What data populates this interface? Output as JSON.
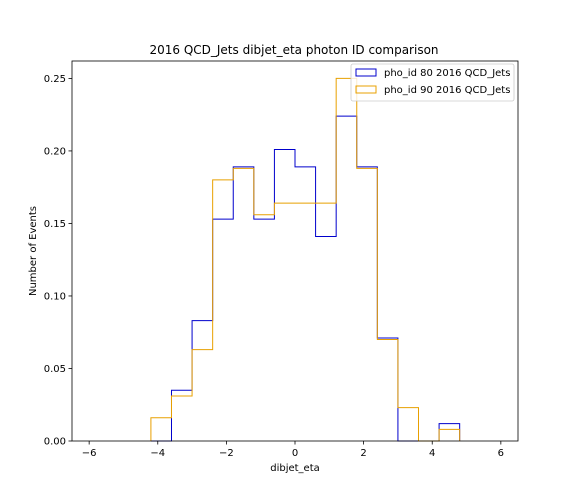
{
  "chart_data": {
    "type": "histogram",
    "title": "2016 QCD_Jets dibjet_eta photon ID comparison",
    "xlabel": "dibjet_eta",
    "ylabel": "Number of Events",
    "xlim": [
      -6.5,
      6.5
    ],
    "ylim": [
      0,
      0.262
    ],
    "x_ticks": [
      -6,
      -4,
      -2,
      0,
      2,
      4,
      6
    ],
    "x_tick_labels": [
      "−6",
      "−4",
      "−2",
      "0",
      "2",
      "4",
      "6"
    ],
    "y_ticks": [
      0.0,
      0.05,
      0.1,
      0.15,
      0.2,
      0.25
    ],
    "y_tick_labels": [
      "0.00",
      "0.05",
      "0.10",
      "0.15",
      "0.20",
      "0.25"
    ],
    "bin_edges": [
      -4.2,
      -3.6,
      -3.0,
      -2.4,
      -1.8,
      -1.2,
      -0.6,
      0.0,
      0.6,
      1.2,
      1.8,
      2.4,
      3.0,
      3.6,
      4.2,
      4.8
    ],
    "series": [
      {
        "name": "pho_id 80 2016 QCD_Jets",
        "color": "#0000cc",
        "values": [
          0.0,
          0.035,
          0.083,
          0.153,
          0.189,
          0.153,
          0.201,
          0.189,
          0.141,
          0.224,
          0.189,
          0.071,
          0.0,
          0.0,
          0.012
        ]
      },
      {
        "name": "pho_id 90 2016 QCD_Jets",
        "color": "#e8a000",
        "values": [
          0.016,
          0.031,
          0.063,
          0.18,
          0.188,
          0.156,
          0.164,
          0.164,
          0.164,
          0.25,
          0.188,
          0.07,
          0.023,
          0.0,
          0.008
        ]
      }
    ],
    "legend_position": "top-right",
    "grid": false
  }
}
